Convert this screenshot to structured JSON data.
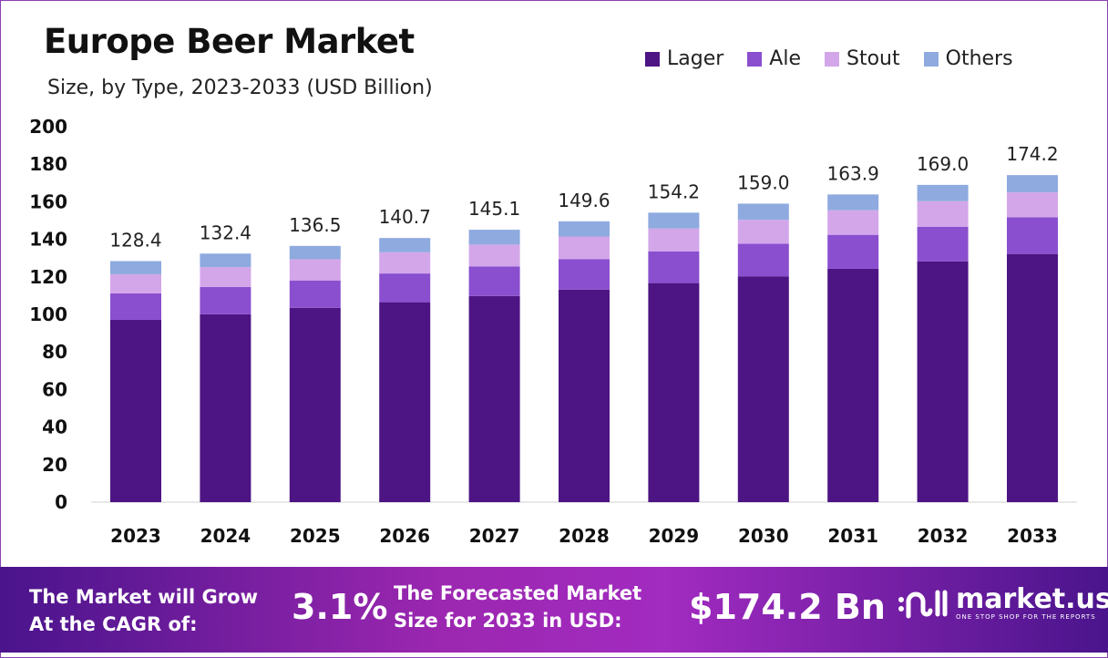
{
  "chart_data": {
    "type": "bar",
    "stacked": true,
    "title": "Europe Beer Market",
    "subtitle": "Size, by Type, 2023-2033 (USD Billion)",
    "xlabel": "",
    "ylabel": "",
    "ylim": [
      0,
      200
    ],
    "yticks": [
      0,
      20,
      40,
      60,
      80,
      100,
      120,
      140,
      160,
      180,
      200
    ],
    "grid": false,
    "legend_position": "top-right",
    "categories": [
      "2023",
      "2024",
      "2025",
      "2026",
      "2027",
      "2028",
      "2029",
      "2030",
      "2031",
      "2032",
      "2033"
    ],
    "series": [
      {
        "name": "Lager",
        "color": "#4d1484",
        "values": [
          97.1,
          100.1,
          103.5,
          106.5,
          109.8,
          113.2,
          116.7,
          120.3,
          124.3,
          128.3,
          132.2
        ]
      },
      {
        "name": "Ale",
        "color": "#8a4fcf",
        "values": [
          14.1,
          14.5,
          14.6,
          15.3,
          15.8,
          16.3,
          16.8,
          17.4,
          18.1,
          18.3,
          19.6
        ]
      },
      {
        "name": "Stout",
        "color": "#d3a6ea",
        "values": [
          10.2,
          10.6,
          11.3,
          11.3,
          11.6,
          12.0,
          12.3,
          12.7,
          13.1,
          13.7,
          13.2
        ]
      },
      {
        "name": "Others",
        "color": "#8eaadf",
        "values": [
          7.0,
          7.2,
          7.1,
          7.6,
          7.9,
          8.1,
          8.4,
          8.6,
          8.4,
          8.7,
          9.2
        ]
      }
    ],
    "totals": [
      "128.4",
      "132.4",
      "136.5",
      "140.7",
      "145.1",
      "149.6",
      "154.2",
      "159.0",
      "163.9",
      "169.0",
      "174.2"
    ]
  },
  "banner": {
    "cagr_label_1": "The Market will Grow",
    "cagr_label_2": "At the CAGR of:",
    "cagr_value": "3.1%",
    "forecast_label_1": "The Forecasted Market",
    "forecast_label_2": "Size for 2033 in USD:",
    "forecast_value": "$174.2 Bn",
    "logo_name": "market.us",
    "logo_tagline": "ONE STOP SHOP FOR THE REPORTS"
  }
}
